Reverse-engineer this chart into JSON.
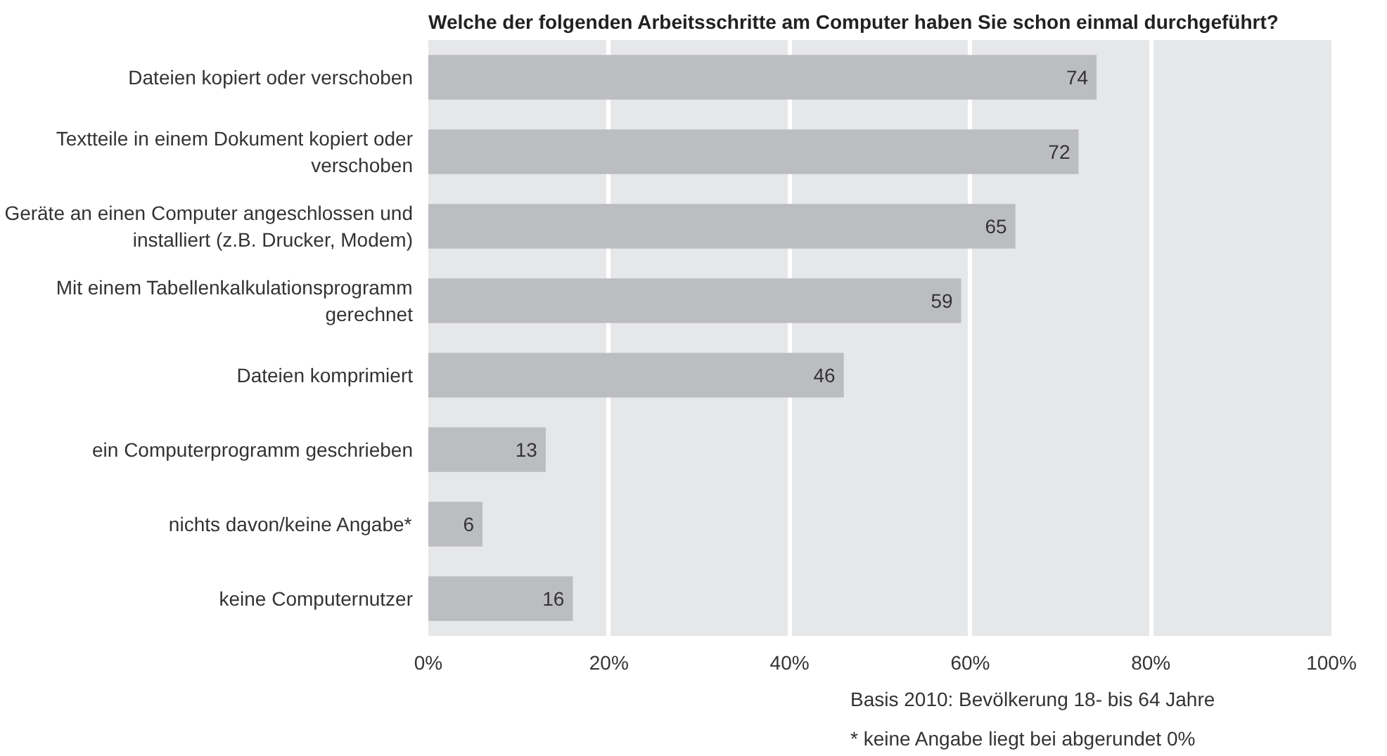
{
  "chart_data": {
    "type": "bar",
    "orientation": "horizontal",
    "title": "Welche der folgenden Arbeitsschritte am Computer haben Sie schon einmal durchgeführt?",
    "categories": [
      "Dateien kopiert oder verschoben",
      "Textteile in einem Dokument kopiert oder verschoben",
      "Geräte an einen Computer angeschlossen und installiert (z.B. Drucker, Modem)",
      "Mit einem Tabellenkalkulationsprogramm gerechnet",
      "Dateien komprimiert",
      "ein Computerprogramm geschrieben",
      "nichts davon/keine Angabe*",
      "keine Computernutzer"
    ],
    "values": [
      74,
      72,
      65,
      59,
      46,
      13,
      6,
      16
    ],
    "color": "#bcbdc0",
    "xlim": [
      0,
      100
    ],
    "xticks": [
      {
        "value": 0,
        "label": "0%"
      },
      {
        "value": 20,
        "label": "20%"
      },
      {
        "value": 40,
        "label": "40%"
      },
      {
        "value": 60,
        "label": "60%"
      },
      {
        "value": 80,
        "label": "80%"
      },
      {
        "value": 100,
        "label": "100%"
      }
    ],
    "grid": "x",
    "data_labels": true,
    "annotations": [
      "Basis 2010: Bevölkerung 18- bis 64 Jahre",
      "* keine Angabe liegt bei abgerundet 0%"
    ]
  }
}
